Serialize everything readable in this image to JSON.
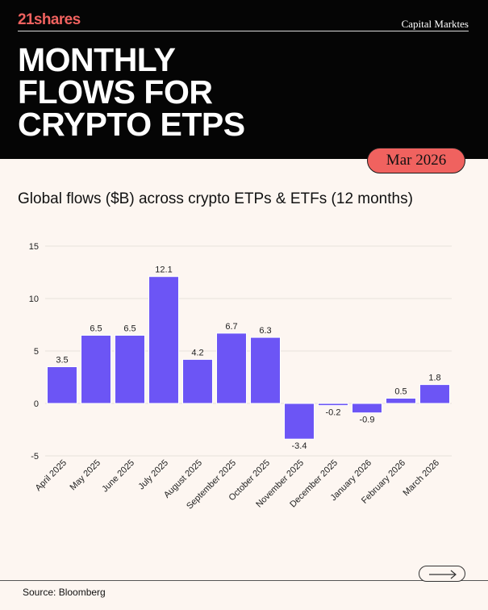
{
  "header": {
    "brand": "21shares",
    "division": "Capital Marktes",
    "title_lines": [
      "MONTHLY",
      "FLOWS FOR",
      "CRYPTO ETPS"
    ],
    "date_badge": "Mar 2026",
    "background_color": "#050505",
    "accent_color": "#f0625f"
  },
  "subtitle": "Global flows ($B) across crypto ETPs & ETFs (12 months)",
  "footer": {
    "source": "Source: Bloomberg",
    "next_icon": "arrow-right-icon"
  },
  "chart_data": {
    "type": "bar",
    "title": "Global flows ($B) across crypto ETPs & ETFs (12 months)",
    "xlabel": "",
    "ylabel": "",
    "categories": [
      "April 2025",
      "May 2025",
      "June 2025",
      "July 2025",
      "August 2025",
      "September 2025",
      "October 2025",
      "November 2025",
      "December 2025",
      "January 2026",
      "February 2026",
      "March 2026"
    ],
    "values": [
      3.5,
      6.5,
      6.5,
      12.1,
      4.2,
      6.7,
      6.3,
      -3.4,
      -0.2,
      -0.9,
      0.5,
      1.8
    ],
    "value_labels": [
      "3.5",
      "6.5",
      "6.5",
      "12.1",
      "4.2",
      "6.7",
      "6.3",
      "-3.4",
      "-0.2",
      "-0.9",
      "0.5",
      "1.8"
    ],
    "yticks": [
      -5,
      0,
      5,
      10,
      15
    ],
    "ylim": [
      -5,
      15
    ],
    "grid": true,
    "bar_color": "#6c55f5",
    "grid_color": "#e7e1dc"
  }
}
